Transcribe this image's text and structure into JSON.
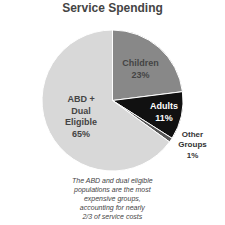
{
  "chart_data": {
    "type": "pie",
    "title": "Service Spending",
    "categories": [
      "Children",
      "Adults",
      "Other\nGroups",
      "ABD +\nDual\nEligible"
    ],
    "values": [
      23,
      11,
      1,
      65
    ],
    "value_labels": [
      "23%",
      "11%",
      "1%",
      "65%"
    ],
    "data_labels": true,
    "colors": [
      "#888888",
      "#111111",
      "#555555",
      "#d8d8d8"
    ],
    "annotation": "The ABD and dual eligible\npopulations are the most\nexpensive groups,\naccounting for nearly\n2/3 of service costs"
  }
}
